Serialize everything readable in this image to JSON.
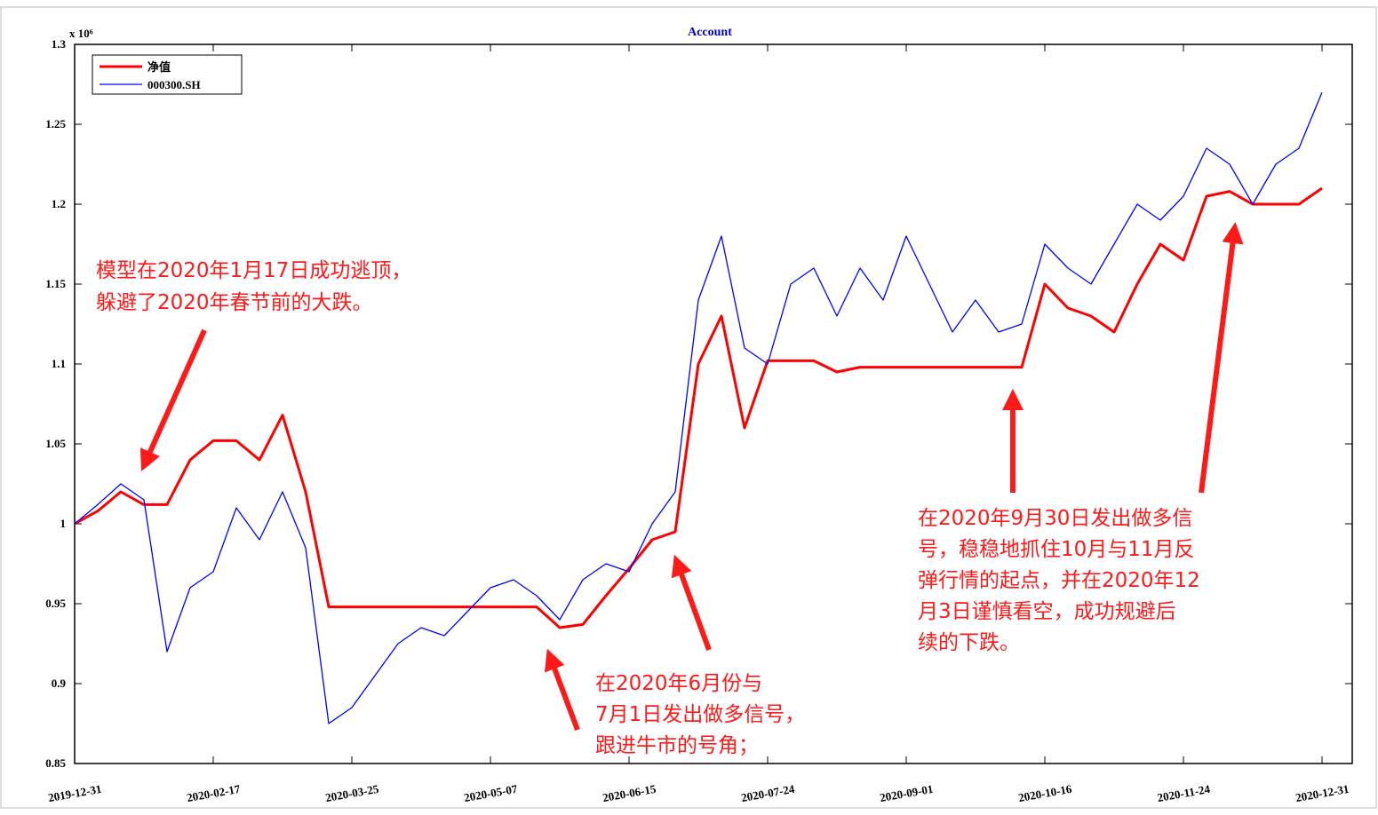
{
  "chart_data": {
    "type": "line",
    "title": "Account",
    "y_multiplier": "x 10⁶",
    "x": [
      "2019-12-31",
      "2020-01-07",
      "2020-01-14",
      "2020-01-21",
      "2020-02-05",
      "2020-02-11",
      "2020-02-17",
      "2020-02-24",
      "2020-02-28",
      "2020-03-06",
      "2020-03-12",
      "2020-03-19",
      "2020-03-25",
      "2020-04-01",
      "2020-04-09",
      "2020-04-16",
      "2020-04-23",
      "2020-04-30",
      "2020-05-07",
      "2020-05-14",
      "2020-05-21",
      "2020-05-28",
      "2020-06-03",
      "2020-06-09",
      "2020-06-15",
      "2020-06-19",
      "2020-06-30",
      "2020-07-07",
      "2020-07-13",
      "2020-07-17",
      "2020-07-24",
      "2020-07-30",
      "2020-08-05",
      "2020-08-12",
      "2020-08-18",
      "2020-08-25",
      "2020-09-01",
      "2020-09-08",
      "2020-09-15",
      "2020-09-22",
      "2020-09-28",
      "2020-10-12",
      "2020-10-16",
      "2020-10-22",
      "2020-10-28",
      "2020-11-04",
      "2020-11-10",
      "2020-11-17",
      "2020-11-24",
      "2020-12-01",
      "2020-12-07",
      "2020-12-11",
      "2020-12-17",
      "2020-12-24",
      "2020-12-31"
    ],
    "series": [
      {
        "name": "净值",
        "color": "#ff0000",
        "width": 3,
        "values": [
          1.0,
          1.008,
          1.02,
          1.012,
          1.012,
          1.04,
          1.052,
          1.052,
          1.04,
          1.068,
          1.02,
          0.948,
          0.948,
          0.948,
          0.948,
          0.948,
          0.948,
          0.948,
          0.948,
          0.948,
          0.948,
          0.935,
          0.937,
          0.955,
          0.972,
          0.99,
          0.995,
          1.1,
          1.13,
          1.06,
          1.102,
          1.102,
          1.102,
          1.095,
          1.098,
          1.098,
          1.098,
          1.098,
          1.098,
          1.098,
          1.098,
          1.098,
          1.15,
          1.135,
          1.13,
          1.12,
          1.15,
          1.175,
          1.165,
          1.205,
          1.208,
          1.2,
          1.2,
          1.2,
          1.21
        ]
      },
      {
        "name": "000300.SH",
        "color": "#0000ff",
        "width": 1.3,
        "values": [
          1.0,
          1.012,
          1.025,
          1.015,
          0.92,
          0.96,
          0.97,
          1.01,
          0.99,
          1.02,
          0.985,
          0.875,
          0.885,
          0.905,
          0.925,
          0.935,
          0.93,
          0.945,
          0.96,
          0.965,
          0.955,
          0.94,
          0.965,
          0.975,
          0.97,
          1.0,
          1.02,
          1.14,
          1.18,
          1.11,
          1.1,
          1.15,
          1.16,
          1.13,
          1.16,
          1.14,
          1.18,
          1.15,
          1.12,
          1.14,
          1.12,
          1.125,
          1.175,
          1.16,
          1.15,
          1.175,
          1.2,
          1.19,
          1.205,
          1.235,
          1.225,
          1.2,
          1.225,
          1.235,
          1.27
        ]
      }
    ],
    "xticks": [
      "2019-12-31",
      "2020-02-17",
      "2020-03-25",
      "2020-05-07",
      "2020-06-15",
      "2020-07-24",
      "2020-09-01",
      "2020-10-16",
      "2020-11-24",
      "2020-12-31"
    ],
    "ylim": [
      0.85,
      1.3
    ],
    "yticks": [
      0.85,
      0.9,
      0.95,
      1,
      1.05,
      1.1,
      1.15,
      1.2,
      1.25,
      1.3
    ],
    "grid": false,
    "legend": "upper left",
    "annotations": [
      [
        "模型在2020年1月17日成功逃顶，",
        "躲避了2020年春节前的大跌。"
      ],
      [
        "在2020年6月份与",
        "7月1日发出做多信号，",
        "跟进牛市的号角；"
      ],
      [
        "在2020年9月30日发出做多信",
        "号，稳稳地抓住10月与11月反",
        "弹行情的起点，并在2020年12",
        "月3日谨慎看空，成功规避后",
        "续的下跌。"
      ]
    ]
  }
}
